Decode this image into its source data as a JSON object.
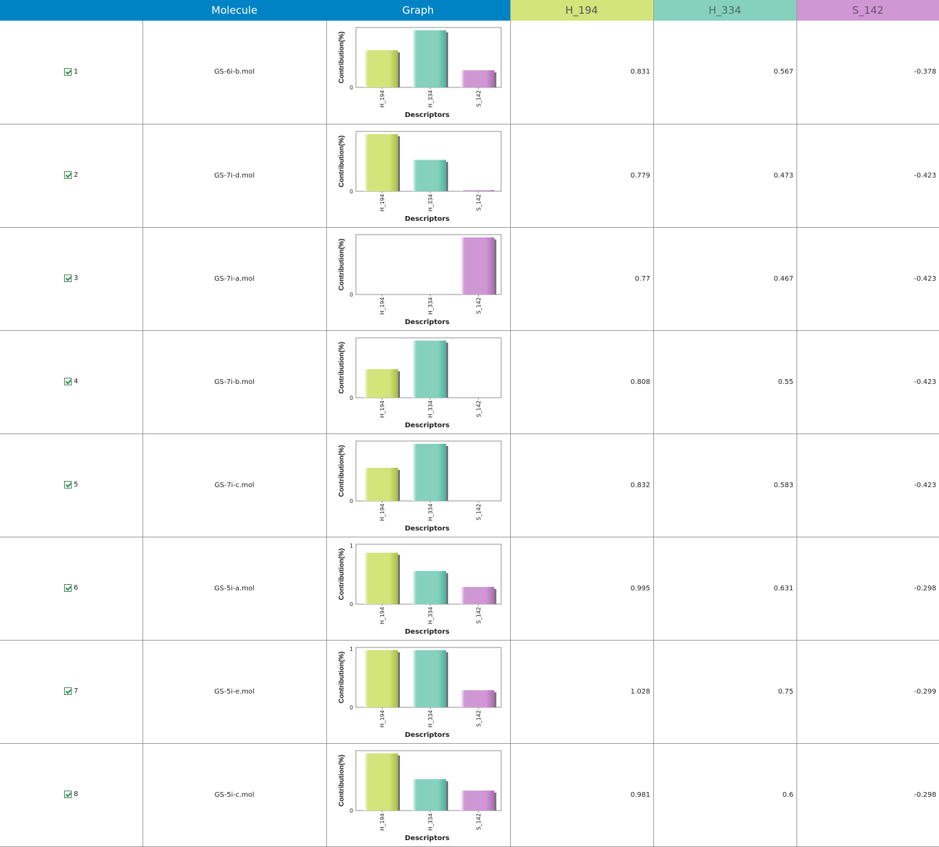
{
  "header": {
    "col_id": "",
    "col_molecule": "Molecule",
    "col_graph": "Graph",
    "col_h194": "H_194",
    "col_h334": "H_334",
    "col_s142": "S_142"
  },
  "colors": {
    "header_blue": "#0083c4",
    "h194": "#d2e47a",
    "h334": "#86d1bd",
    "s142": "#cf98d4"
  },
  "rows": [
    {
      "index": "1",
      "checked": true,
      "molecule": "GS-6i-b.mol",
      "h194": "0.831",
      "h334": "0.567",
      "s142": "-0.378"
    },
    {
      "index": "2",
      "checked": true,
      "molecule": "GS-7i-d.mol",
      "h194": "0.779",
      "h334": "0.473",
      "s142": "-0.423"
    },
    {
      "index": "3",
      "checked": true,
      "molecule": "GS-7i-a.mol",
      "h194": "0.77",
      "h334": "0.467",
      "s142": "-0.423"
    },
    {
      "index": "4",
      "checked": true,
      "molecule": "GS-7i-b.mol",
      "h194": "0.808",
      "h334": "0.55",
      "s142": "-0.423"
    },
    {
      "index": "5",
      "checked": true,
      "molecule": "GS-7i-c.mol",
      "h194": "0.832",
      "h334": "0.583",
      "s142": "-0.423"
    },
    {
      "index": "6",
      "checked": true,
      "molecule": "GS-5i-a.mol",
      "h194": "0.995",
      "h334": "0.631",
      "s142": "-0.298"
    },
    {
      "index": "7",
      "checked": true,
      "molecule": "GS-5i-e.mol",
      "h194": "1.028",
      "h334": "0.75",
      "s142": "-0.299"
    },
    {
      "index": "8",
      "checked": true,
      "molecule": "GS-5i-c.mol",
      "h194": "0.981",
      "h334": "0.6",
      "s142": "-0.298"
    }
  ],
  "chart_data": [
    {
      "type": "bar",
      "categories": [
        "H_194",
        "H_334",
        "S_142"
      ],
      "values": [
        0.65,
        1.0,
        0.3
      ],
      "ylabel": "Contribution(%)",
      "xlabel": "Descriptors",
      "yticks": [
        "0"
      ]
    },
    {
      "type": "bar",
      "categories": [
        "H_194",
        "H_334",
        "S_142"
      ],
      "values": [
        1.0,
        0.55,
        0.02
      ],
      "ylabel": "Contribution(%)",
      "xlabel": "Descriptors",
      "yticks": [
        "0"
      ]
    },
    {
      "type": "bar",
      "categories": [
        "H_194",
        "H_334",
        "S_142"
      ],
      "values": [
        0.0,
        0.0,
        1.0
      ],
      "ylabel": "Contribution(%)",
      "xlabel": "Descriptors",
      "yticks": [
        "0"
      ]
    },
    {
      "type": "bar",
      "categories": [
        "H_194",
        "H_334",
        "S_142"
      ],
      "values": [
        0.5,
        1.0,
        0.0
      ],
      "ylabel": "Contribution(%)",
      "xlabel": "Descriptors",
      "yticks": [
        "0"
      ]
    },
    {
      "type": "bar",
      "categories": [
        "H_194",
        "H_334",
        "S_142"
      ],
      "values": [
        0.58,
        1.0,
        0.0
      ],
      "ylabel": "Contribution(%)",
      "xlabel": "Descriptors",
      "yticks": [
        "0"
      ]
    },
    {
      "type": "bar",
      "categories": [
        "H_194",
        "H_334",
        "S_142"
      ],
      "values": [
        0.9,
        0.58,
        0.3
      ],
      "ylabel": "Contribution(%)",
      "xlabel": "Descriptors",
      "yticks": [
        "0",
        "1"
      ],
      "ymax": 1.0
    },
    {
      "type": "bar",
      "categories": [
        "H_194",
        "H_334",
        "S_142"
      ],
      "values": [
        1.0,
        1.0,
        0.3
      ],
      "ylabel": "Contribution(%)",
      "xlabel": "Descriptors",
      "yticks": [
        "0",
        "1"
      ],
      "ymax": 1.0
    },
    {
      "type": "bar",
      "categories": [
        "H_194",
        "H_334",
        "S_142"
      ],
      "values": [
        1.0,
        0.55,
        0.35
      ],
      "ylabel": "Contribution(%)",
      "xlabel": "Descriptors",
      "yticks": [
        "0"
      ]
    }
  ]
}
